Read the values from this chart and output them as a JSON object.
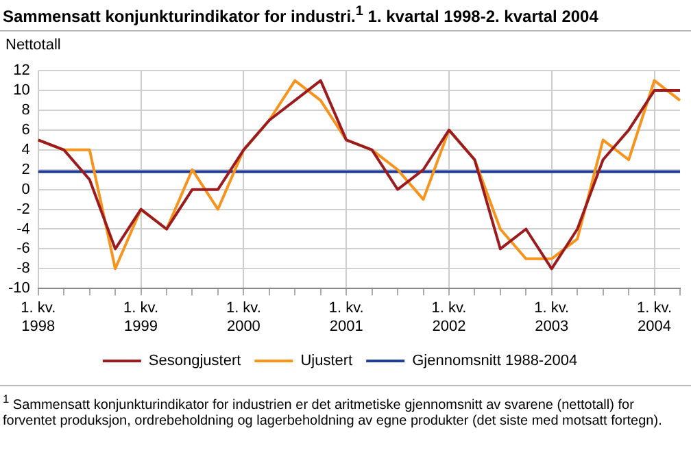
{
  "chart_data": {
    "type": "line",
    "title": "Sammensatt konjunkturindikator for industri.$^{1}$ 1. kvartal 1998-2. kvartal 2004",
    "ylabel": "Nettotall",
    "categories": [
      "1. kv.\n1998",
      null,
      null,
      null,
      "1. kv.\n1999",
      null,
      null,
      null,
      "1. kv.\n2000",
      null,
      null,
      null,
      "1. kv.\n2001",
      null,
      null,
      null,
      "1. kv.\n2002",
      null,
      null,
      null,
      "1. kv.\n2003",
      null,
      null,
      null,
      "1. kv.\n2004",
      null
    ],
    "series": [
      {
        "name": "Sesongjustert",
        "color": "#9b1b1e",
        "values": [
          5,
          4,
          1,
          -6,
          -2,
          -4,
          0,
          0,
          4,
          7,
          9,
          11,
          5,
          4,
          0,
          2,
          6,
          3,
          -6,
          -4,
          -8,
          -4,
          3,
          6,
          10,
          10
        ]
      },
      {
        "name": "Ujustert",
        "color": "#f7941d",
        "values": [
          5,
          4,
          4,
          -8,
          -2,
          -4,
          2,
          -2,
          4,
          7,
          11,
          9,
          5,
          4,
          2,
          -1,
          6,
          3,
          -4,
          -7,
          -7,
          -5,
          5,
          3,
          11,
          9
        ]
      },
      {
        "name": "Gjennomsnitt 1988-2004",
        "color": "#1f3c99",
        "values": [
          1.8,
          1.8,
          1.8,
          1.8,
          1.8,
          1.8,
          1.8,
          1.8,
          1.8,
          1.8,
          1.8,
          1.8,
          1.8,
          1.8,
          1.8,
          1.8,
          1.8,
          1.8,
          1.8,
          1.8,
          1.8,
          1.8,
          1.8,
          1.8,
          1.8,
          1.8
        ]
      }
    ],
    "ylim": [
      -10,
      12
    ],
    "yticks": [
      -10,
      -8,
      -6,
      -4,
      -2,
      0,
      2,
      4,
      6,
      8,
      10,
      12
    ],
    "grid": true,
    "legend": "bottom",
    "marker": "none",
    "line_style": "solid",
    "annotations": [
      "$^{1}$ Sammensatt konjunkturindikator for industrien er det aritmetiske gjennomsnitt av svarene (nettotall) for forventet produksjon, ordrebeholdning og lagerbeholdning av egne produkter (det siste med motsatt fortegn)."
    ]
  }
}
